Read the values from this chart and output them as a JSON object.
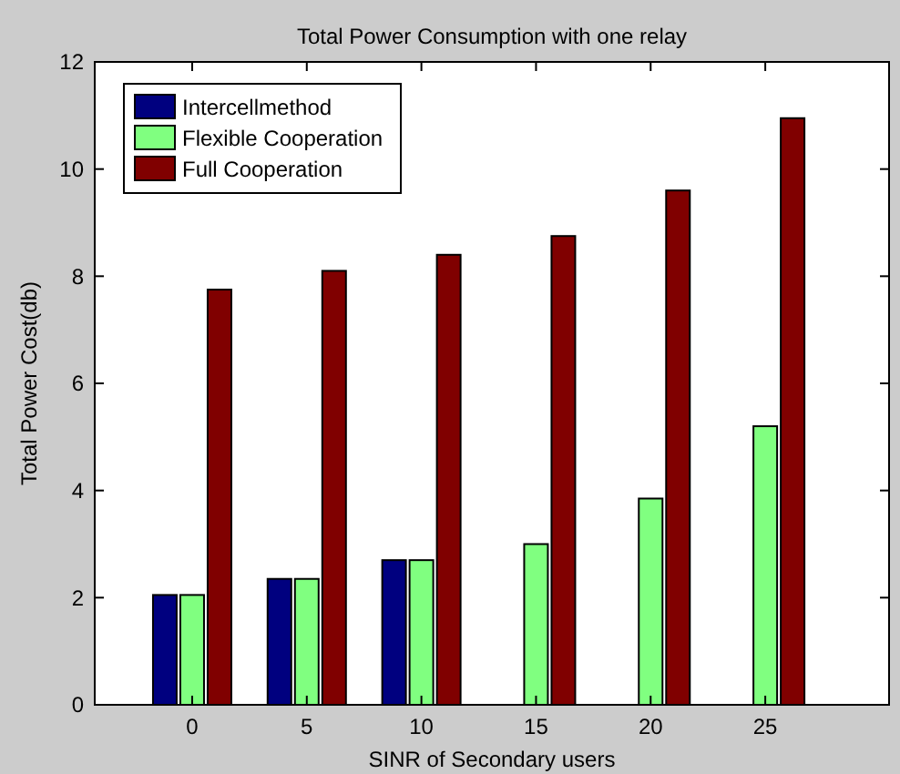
{
  "chart_data": {
    "type": "bar",
    "title": "Total Power Consumption with one relay",
    "xlabel": "SINR of Secondary users",
    "ylabel": "Total Power Cost(db)",
    "categories": [
      "0",
      "5",
      "10",
      "15",
      "20",
      "25"
    ],
    "series": [
      {
        "name": "Intercellmethod",
        "color": "#00007f",
        "values": [
          2.05,
          2.35,
          2.7,
          null,
          null,
          null
        ]
      },
      {
        "name": "Flexible Cooperation",
        "color": "#80ff80",
        "values": [
          2.05,
          2.35,
          2.7,
          3.0,
          3.85,
          5.2
        ]
      },
      {
        "name": "Full Cooperation",
        "color": "#800000",
        "values": [
          7.75,
          8.1,
          8.4,
          8.75,
          9.6,
          10.95
        ]
      }
    ],
    "ylim": [
      0,
      12
    ],
    "yticks": [
      0,
      2,
      4,
      6,
      8,
      10,
      12
    ],
    "grid": false,
    "legend": "top left"
  }
}
